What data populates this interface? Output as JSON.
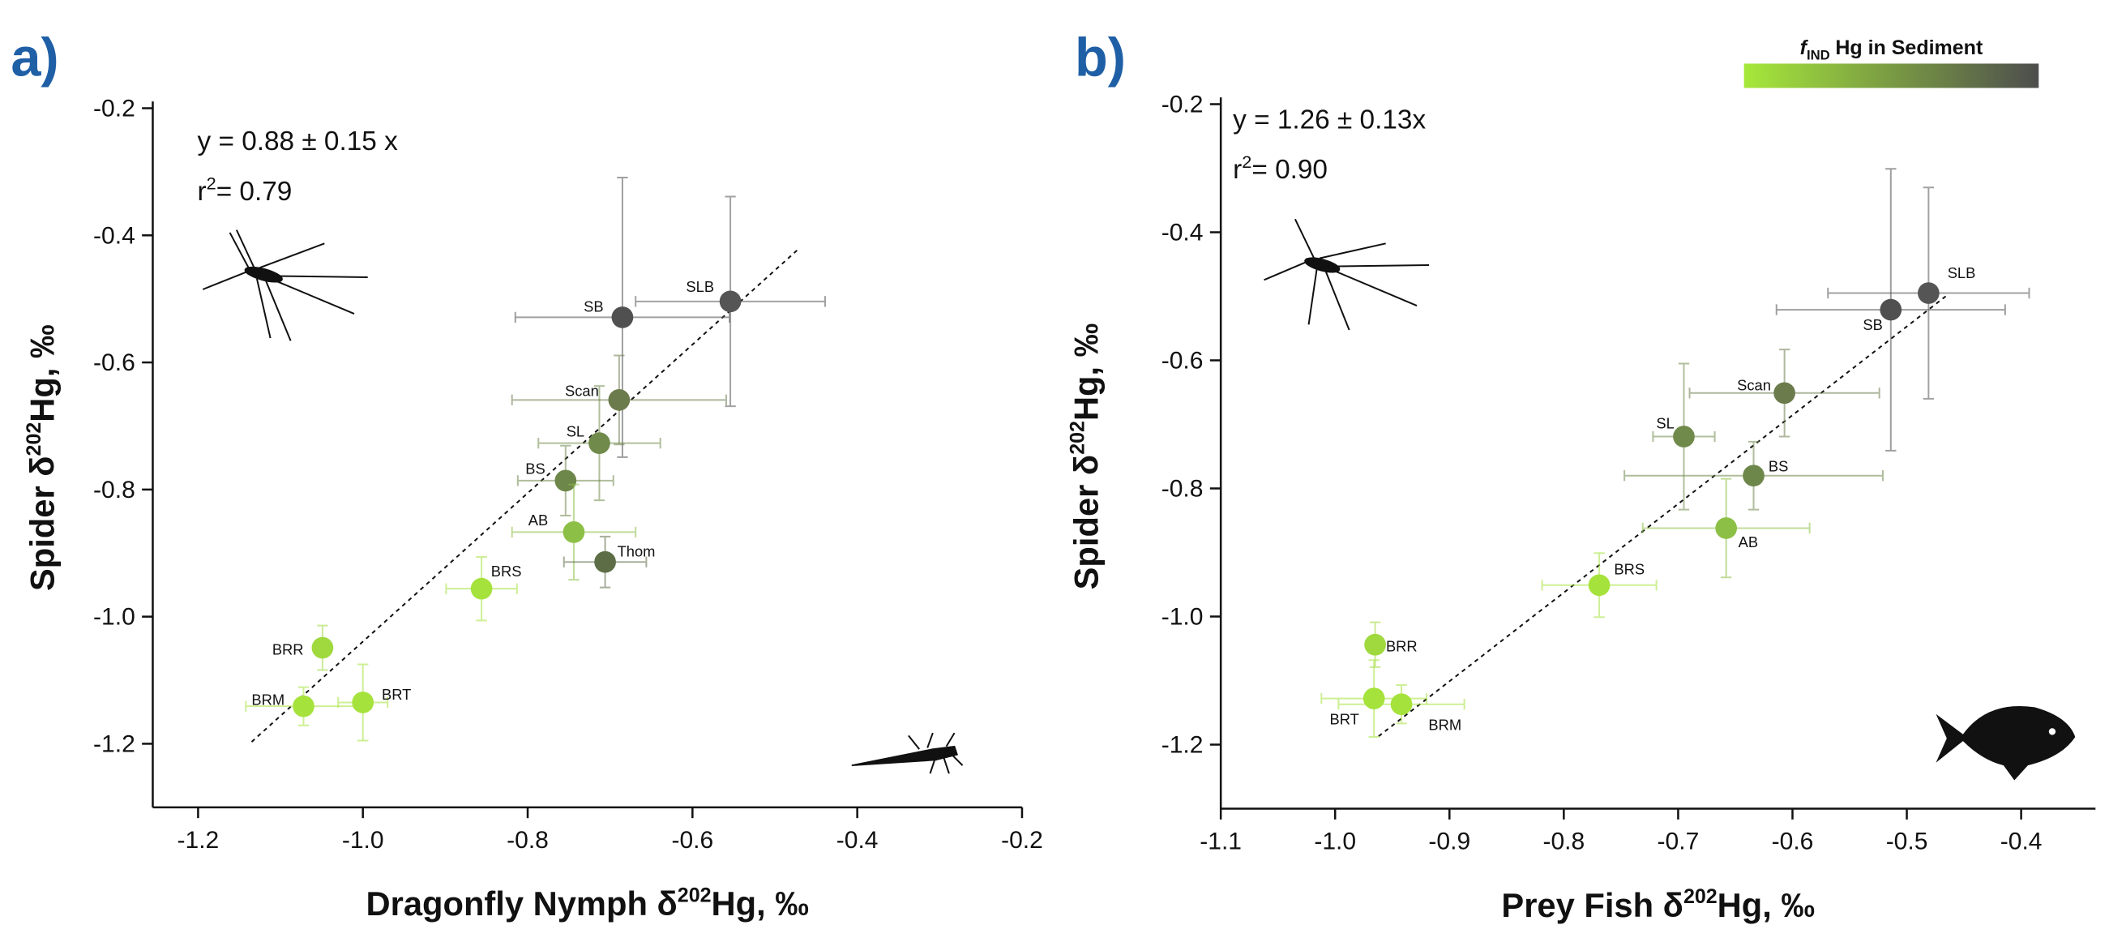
{
  "chart_data": [
    {
      "type": "scatter",
      "panel_label": "a)",
      "x_label": [
        "Dragonfly Nymph δ",
        "202",
        "Hg, ‰"
      ],
      "y_label": [
        "Spider δ",
        "202",
        "Hg, ‰"
      ],
      "equation": "y = 0.88 ± 0.15 x",
      "r_squared": [
        "r",
        "2",
        "= 0.79"
      ],
      "xlim": [
        -1.255,
        -0.2
      ],
      "ylim": [
        -1.3,
        -0.2
      ],
      "xticks": [
        -1.2,
        {
          "value": -1,
          "label": "-1.0"
        },
        -0.8,
        -0.6,
        -0.4,
        -0.2
      ],
      "yticks": [
        {
          "value": -1.2,
          "label": "-1.2"
        },
        {
          "value": -1,
          "label": "-1.0"
        },
        -0.8,
        -0.6,
        -0.4,
        -0.2
      ],
      "labels": [
        "SB",
        "SLB",
        "Scan",
        "SL",
        "BS",
        "AB",
        "Thom",
        "BRS",
        "BRR",
        "BRM",
        "BRT"
      ],
      "x": [
        -0.685,
        -0.554,
        -0.689,
        -0.713,
        -0.754,
        -0.744,
        -0.706,
        -0.856,
        -1.049,
        -1.072,
        -1.0
      ],
      "values": [
        -0.529,
        -0.504,
        -0.659,
        -0.727,
        -0.786,
        -0.867,
        -0.914,
        -0.956,
        -1.049,
        -1.141,
        -1.135
      ],
      "x_err": [
        0.13,
        0.115,
        0.13,
        0.074,
        0.058,
        0.075,
        0.05,
        0.043,
        0.01,
        0.07,
        0.03
      ],
      "y_err": [
        0.22,
        0.165,
        0.07,
        0.09,
        0.055,
        0.075,
        0.04,
        0.05,
        0.035,
        0.03,
        0.06
      ],
      "colors": [
        "#505050",
        "#555555",
        "#6b7b4c",
        "#6f8a4a",
        "#6d874a",
        "#8cbf45",
        "#5d6e47",
        "#a6e23c",
        "#9fd93e",
        "#a6e23c",
        "#a6e23c"
      ],
      "fit_line": {
        "x": [
          -1.135,
          -0.47
        ],
        "y": [
          -1.197,
          -0.42
        ]
      }
    },
    {
      "type": "scatter",
      "panel_label": "b)",
      "x_label": [
        "Prey Fish δ",
        "202",
        "Hg, ‰"
      ],
      "y_label": [
        "Spider δ",
        "202",
        "Hg, ‰"
      ],
      "equation": "y = 1.26 ± 0.13x",
      "r_squared": [
        "r",
        "2",
        "= 0.90"
      ],
      "xlim": [
        -1.1,
        -0.335
      ],
      "ylim": [
        -1.3,
        -0.2
      ],
      "xticks": [
        -1.1,
        {
          "value": -1,
          "label": "-1.0"
        },
        -0.9,
        -0.8,
        -0.7,
        -0.6,
        -0.5,
        -0.4
      ],
      "yticks": [
        -1.2,
        {
          "value": -1,
          "label": "-1.0"
        },
        -0.8,
        -0.6,
        -0.4,
        -0.2
      ],
      "labels": [
        "SLB",
        "SB",
        "Scan",
        "SL",
        "BS",
        "AB",
        "BRS",
        "BRR",
        "BRT",
        "BRM"
      ],
      "x": [
        -0.481,
        -0.514,
        -0.607,
        -0.695,
        -0.634,
        -0.658,
        -0.769,
        -0.965,
        -0.966,
        -0.942
      ],
      "values": [
        -0.495,
        -0.521,
        -0.651,
        -0.719,
        -0.78,
        -0.862,
        -0.951,
        -1.044,
        -1.128,
        -1.137
      ],
      "x_err": [
        0.088,
        0.1,
        0.083,
        0.027,
        0.113,
        0.073,
        0.05,
        0.005,
        0.046,
        0.055
      ],
      "y_err": [
        0.165,
        0.22,
        0.068,
        0.114,
        0.053,
        0.077,
        0.05,
        0.035,
        0.06,
        0.03
      ],
      "colors": [
        "#555555",
        "#505050",
        "#6b7b4c",
        "#6f8a4a",
        "#6d874a",
        "#8cbf45",
        "#a6e23c",
        "#9fd93e",
        "#a6e23c",
        "#a6e23c"
      ],
      "fit_line": {
        "x": [
          -0.962,
          -0.466
        ],
        "y": [
          -1.187,
          -0.5
        ]
      },
      "colorbar": {
        "title": [
          "f",
          "IND",
          "Hg in Sediment"
        ],
        "colors": [
          "#a6e83a",
          "#4d4d4d"
        ]
      }
    }
  ]
}
